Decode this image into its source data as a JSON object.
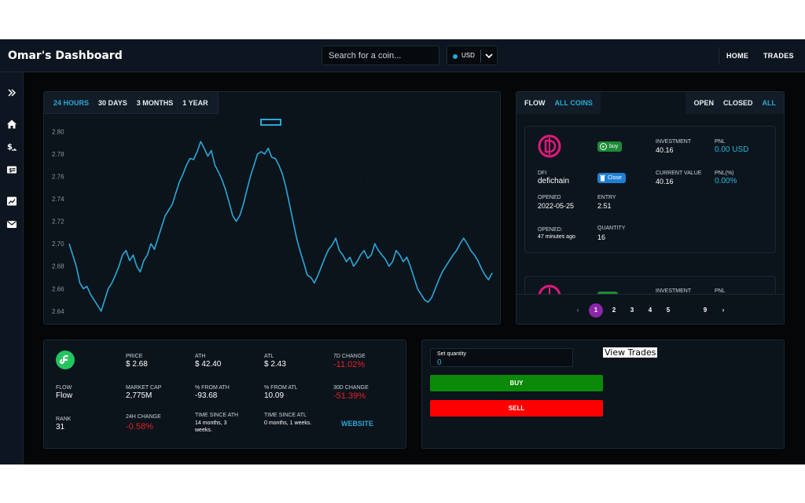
{
  "header": {
    "title": "Omar's Dashboard",
    "search_placeholder": "Search for a coin...",
    "currency": "USD",
    "nav": [
      "HOME",
      "TRADES"
    ]
  },
  "sidebar": {
    "items": [
      "expand-icon",
      "home-icon",
      "dollar-exchange-icon",
      "wallet-card-icon",
      "chart-icon",
      "mail-icon"
    ]
  },
  "chart": {
    "timeframes": [
      "24 HOURS",
      "30 DAYS",
      "3 MONTHS",
      "1 YEAR"
    ],
    "active_timeframe": "24 HOURS",
    "line_color": "#29a9d8"
  },
  "chart_data": {
    "type": "line",
    "title": "",
    "xlabel": "",
    "ylabel": "",
    "yticks": [
      "2.80",
      "2.78",
      "2.76",
      "2.74",
      "2.72",
      "2.70",
      "2.68",
      "2.66",
      "2.64"
    ],
    "ylim": [
      2.635,
      2.81
    ],
    "legend": "none",
    "grid": false,
    "series": [
      {
        "values": [
          2.7,
          2.69,
          2.68,
          2.665,
          2.66,
          2.662,
          2.655,
          2.65,
          2.645,
          2.64,
          2.65,
          2.66,
          2.665,
          2.672,
          2.68,
          2.69,
          2.694,
          2.685,
          2.69,
          2.68,
          2.675,
          2.685,
          2.69,
          2.7,
          2.695,
          2.705,
          2.715,
          2.725,
          2.73,
          2.735,
          2.745,
          2.755,
          2.762,
          2.77,
          2.776,
          2.775,
          2.782,
          2.791,
          2.785,
          2.778,
          2.783,
          2.77,
          2.764,
          2.757,
          2.748,
          2.737,
          2.725,
          2.72,
          2.725,
          2.735,
          2.748,
          2.76,
          2.77,
          2.78,
          2.782,
          2.78,
          2.785,
          2.777,
          2.776,
          2.77,
          2.762,
          2.75,
          2.735,
          2.72,
          2.705,
          2.693,
          2.683,
          2.672,
          2.67,
          2.665,
          2.672,
          2.68,
          2.688,
          2.695,
          2.699,
          2.705,
          2.694,
          2.69,
          2.684,
          2.688,
          2.68,
          2.684,
          2.69,
          2.694,
          2.687,
          2.69,
          2.7,
          2.694,
          2.69,
          2.686,
          2.68,
          2.684,
          2.694,
          2.69,
          2.684,
          2.688,
          2.68,
          2.67,
          2.66,
          2.655,
          2.65,
          2.648,
          2.652,
          2.66,
          2.668,
          2.675,
          2.68,
          2.685,
          2.69,
          2.694,
          2.7,
          2.705,
          2.7,
          2.694,
          2.69,
          2.685,
          2.678,
          2.672,
          2.668,
          2.674
        ]
      }
    ]
  },
  "trades": {
    "left_tabs": [
      "FLOW",
      "ALL COINS"
    ],
    "right_tabs": [
      "OPEN",
      "CLOSED",
      "ALL"
    ],
    "active_left": "ALL COINS",
    "active_right": "ALL",
    "card": {
      "coin_symbol": "DFI",
      "coin_name": "defichain",
      "side_badge": "buy",
      "status_badge": "Close",
      "investment_label": "INVESTMENT",
      "investment": "40.16",
      "pnl_label": "PNL",
      "pnl": "0.00 USD",
      "current_value_label": "CURRENT VALUE",
      "current_value": "40.16",
      "pnl_pct_label": "PNL(%)",
      "pnl_pct": "0.00%",
      "opened_label": "OPENED",
      "opened": "2022-05-25",
      "entry_label": "ENTRY",
      "entry": "2.51",
      "opened_ago_label": "OPENED:",
      "opened_ago": "47 minutes ago",
      "quantity_label": "QUANTITY",
      "quantity": "16"
    },
    "card2": {
      "investment_label": "INVESTMENT",
      "pnl_label": "PNL"
    },
    "pagination": {
      "prev": "‹",
      "next": "›",
      "pages": [
        "1",
        "2",
        "3",
        "4",
        "5",
        "9"
      ],
      "current": "1"
    },
    "colors": {
      "buy": "#1d8a37",
      "close": "#1f7fd6",
      "logo": "#e0197d"
    }
  },
  "coin_stats": {
    "price_label": "PRICE",
    "price": "$ 2.68",
    "ath_label": "ATH",
    "ath": "$ 42.40",
    "atl_label": "ATL",
    "atl": "$ 2.43",
    "change_7d_label": "7D CHANGE",
    "change_7d": "-11.02%",
    "flow_label": "FLOW",
    "flow": "Flow",
    "market_cap_label": "MARKET CAP",
    "market_cap": "2,775M",
    "from_ath_label": "% FROM ATH",
    "from_ath": "-93.68",
    "from_atl_label": "% FROM ATL",
    "from_atl": "10.09",
    "change_30d_label": "30D CHANGE",
    "change_30d": "-51.39%",
    "rank_label": "RANK",
    "rank": "31",
    "change_24h_label": "24H CHANGE",
    "change_24h": "-0.58%",
    "since_ath_label": "TIME SINCE ATH",
    "since_ath": "14 months, 3 weeks.",
    "since_atl_label": "TIME SINCE ATL",
    "since_atl": "0 months, 1 weeks.",
    "website": "WEBSITE",
    "colors": {
      "negative": "#e2222a",
      "logo": "#22c55e"
    }
  },
  "trade_form": {
    "quantity_label": "Set quantity",
    "quantity_value": "0",
    "view_trades": "View Trades",
    "buy": "BUY",
    "sell": "SELL",
    "colors": {
      "buy": "#0a8a08",
      "sell": "#ff0000"
    }
  }
}
